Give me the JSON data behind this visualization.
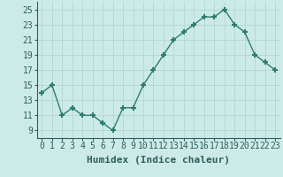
{
  "x": [
    0,
    1,
    2,
    3,
    4,
    5,
    6,
    7,
    8,
    9,
    10,
    11,
    12,
    13,
    14,
    15,
    16,
    17,
    18,
    19,
    20,
    21,
    22,
    23
  ],
  "y": [
    14,
    15,
    11,
    12,
    11,
    11,
    10,
    9,
    12,
    12,
    15,
    17,
    19,
    21,
    22,
    23,
    24,
    24,
    25,
    23,
    22,
    19,
    18,
    17
  ],
  "xlabel": "Humidex (Indice chaleur)",
  "ylim": [
    8,
    26
  ],
  "xlim": [
    -0.5,
    23.5
  ],
  "yticks": [
    9,
    11,
    13,
    15,
    17,
    19,
    21,
    23,
    25
  ],
  "xtick_labels": [
    "0",
    "1",
    "2",
    "3",
    "4",
    "5",
    "6",
    "7",
    "8",
    "9",
    "10",
    "11",
    "12",
    "13",
    "14",
    "15",
    "16",
    "17",
    "18",
    "19",
    "20",
    "21",
    "22",
    "23"
  ],
  "line_color": "#2e7d6e",
  "marker": "+",
  "bg_color": "#cceae8",
  "grid_color": "#b8d8d5",
  "font_color": "#2e5f5a",
  "xlabel_fontsize": 8,
  "tick_fontsize": 7,
  "title_color": "#2e5f5a"
}
